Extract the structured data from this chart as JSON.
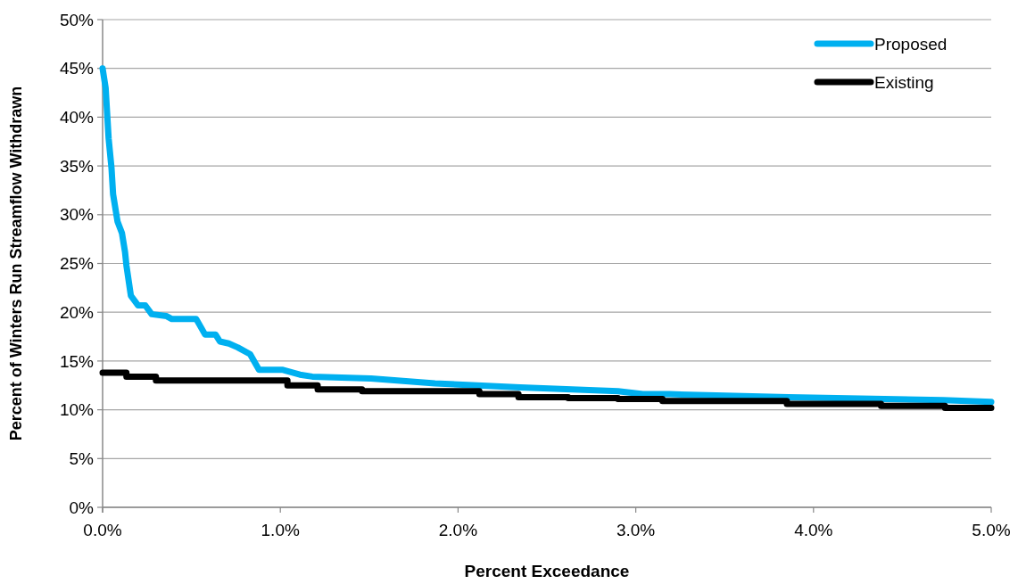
{
  "chart_data": {
    "type": "line",
    "xlabel": "Percent Exceedance",
    "ylabel": "Percent of Winters Run Streamflow Withdrawn",
    "xlim": [
      0,
      5
    ],
    "ylim": [
      0,
      50
    ],
    "xticks": [
      {
        "value": 0,
        "label": "0.0%"
      },
      {
        "value": 1,
        "label": "1.0%"
      },
      {
        "value": 2,
        "label": "2.0%"
      },
      {
        "value": 3,
        "label": "3.0%"
      },
      {
        "value": 4,
        "label": "4.0%"
      },
      {
        "value": 5,
        "label": "5.0%"
      }
    ],
    "yticks": [
      {
        "value": 0,
        "label": "0%"
      },
      {
        "value": 5,
        "label": "5%"
      },
      {
        "value": 10,
        "label": "10%"
      },
      {
        "value": 15,
        "label": "15%"
      },
      {
        "value": 20,
        "label": "20%"
      },
      {
        "value": 25,
        "label": "25%"
      },
      {
        "value": 30,
        "label": "30%"
      },
      {
        "value": 35,
        "label": "35%"
      },
      {
        "value": 40,
        "label": "40%"
      },
      {
        "value": 45,
        "label": "45%"
      },
      {
        "value": 50,
        "label": "50%"
      }
    ],
    "grid": "y",
    "legend": "top right",
    "marker": "none",
    "line_style": "solid",
    "series": [
      {
        "name": "Proposed",
        "color": "#00b0f0",
        "x": [
          0,
          0.017,
          0.034,
          0.05,
          0.059,
          0.084,
          0.109,
          0.126,
          0.134,
          0.159,
          0.2,
          0.24,
          0.276,
          0.36,
          0.39,
          0.527,
          0.577,
          0.636,
          0.66,
          0.71,
          0.76,
          0.83,
          0.88,
          1.01,
          1.11,
          1.18,
          1.51,
          1.87,
          2.35,
          2.9,
          3.04,
          3.19,
          3.86,
          4.73,
          5
        ],
        "values": [
          45,
          43,
          37.8,
          34.8,
          32.1,
          29.3,
          28.1,
          26.2,
          24.8,
          21.7,
          20.7,
          20.7,
          19.8,
          19.6,
          19.3,
          19.3,
          17.7,
          17.7,
          17,
          16.8,
          16.4,
          15.7,
          14.1,
          14.1,
          13.6,
          13.4,
          13.2,
          12.7,
          12.3,
          11.9,
          11.6,
          11.6,
          11.3,
          11,
          10.8
        ]
      },
      {
        "name": "Existing",
        "color": "#000000",
        "x": [
          0,
          0.134,
          0.134,
          0.3,
          0.3,
          1.04,
          1.04,
          1.21,
          1.21,
          1.46,
          1.46,
          2.12,
          2.12,
          2.34,
          2.34,
          2.62,
          2.62,
          2.9,
          2.9,
          3.15,
          3.15,
          3.85,
          3.85,
          4.38,
          4.38,
          4.74,
          4.74,
          5
        ],
        "values": [
          13.8,
          13.8,
          13.4,
          13.4,
          13,
          13,
          12.5,
          12.5,
          12.1,
          12.1,
          11.9,
          11.9,
          11.6,
          11.6,
          11.3,
          11.3,
          11.2,
          11.2,
          11.1,
          11.1,
          10.9,
          10.9,
          10.6,
          10.6,
          10.4,
          10.4,
          10.2,
          10.2
        ]
      }
    ]
  }
}
